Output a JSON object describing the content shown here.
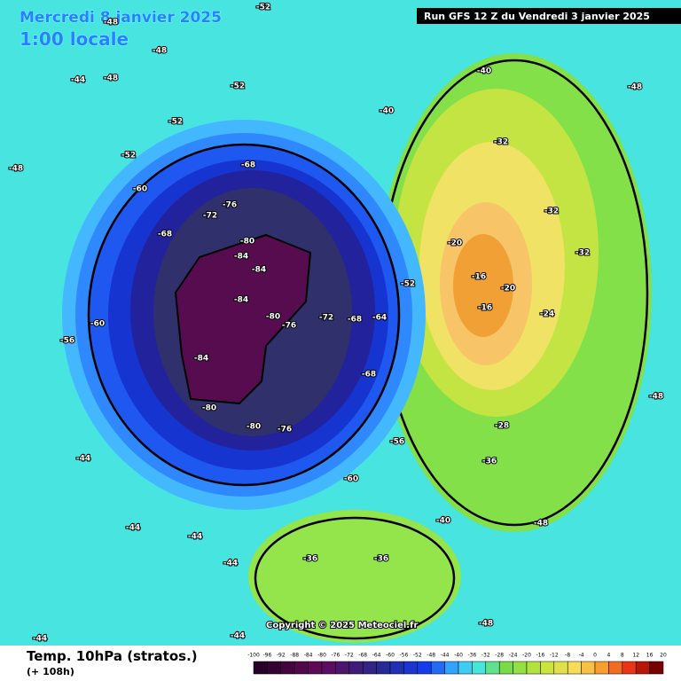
{
  "header": {
    "date": "Mercredi 8 janvier 2025",
    "time": "1:00 locale",
    "run": "Run GFS 12 Z du Vendredi 3 janvier 2025"
  },
  "footer": {
    "title": "Temp. 10hPa (stratos.)",
    "lead": "(+ 108h)",
    "copyright": "Copyright © 2025 Meteociel.fr"
  },
  "scale": {
    "labels": [
      "-100",
      "-96",
      "-92",
      "-88",
      "-84",
      "-80",
      "-76",
      "-72",
      "-68",
      "-64",
      "-60",
      "-56",
      "-52",
      "-48",
      "-44",
      "-40",
      "-36",
      "-32",
      "-28",
      "-24",
      "-20",
      "-16",
      "-12",
      "-8",
      "-4",
      "0",
      "4",
      "8",
      "12",
      "16",
      "20"
    ]
  },
  "map_labels": [
    "-52",
    "-48",
    "-48",
    "-44",
    "-48",
    "-52",
    "-52",
    "-52",
    "-68",
    "-60",
    "-68",
    "-72",
    "-76",
    "-80",
    "-84",
    "-84",
    "-84",
    "-80",
    "-76",
    "-72",
    "-68",
    "-64",
    "-68",
    "-84",
    "-80",
    "-80",
    "-76",
    "-60",
    "-56",
    "-60",
    "-56",
    "-52",
    "-40",
    "-40",
    "-32",
    "-20",
    "-16",
    "-16",
    "-20",
    "-24",
    "-32",
    "-32",
    "-28",
    "-36",
    "-40",
    "-36",
    "-36",
    "-44",
    "-44",
    "-44",
    "-44",
    "-48",
    "-48",
    "-48",
    "-48",
    "-44",
    "-48",
    "-44"
  ]
}
